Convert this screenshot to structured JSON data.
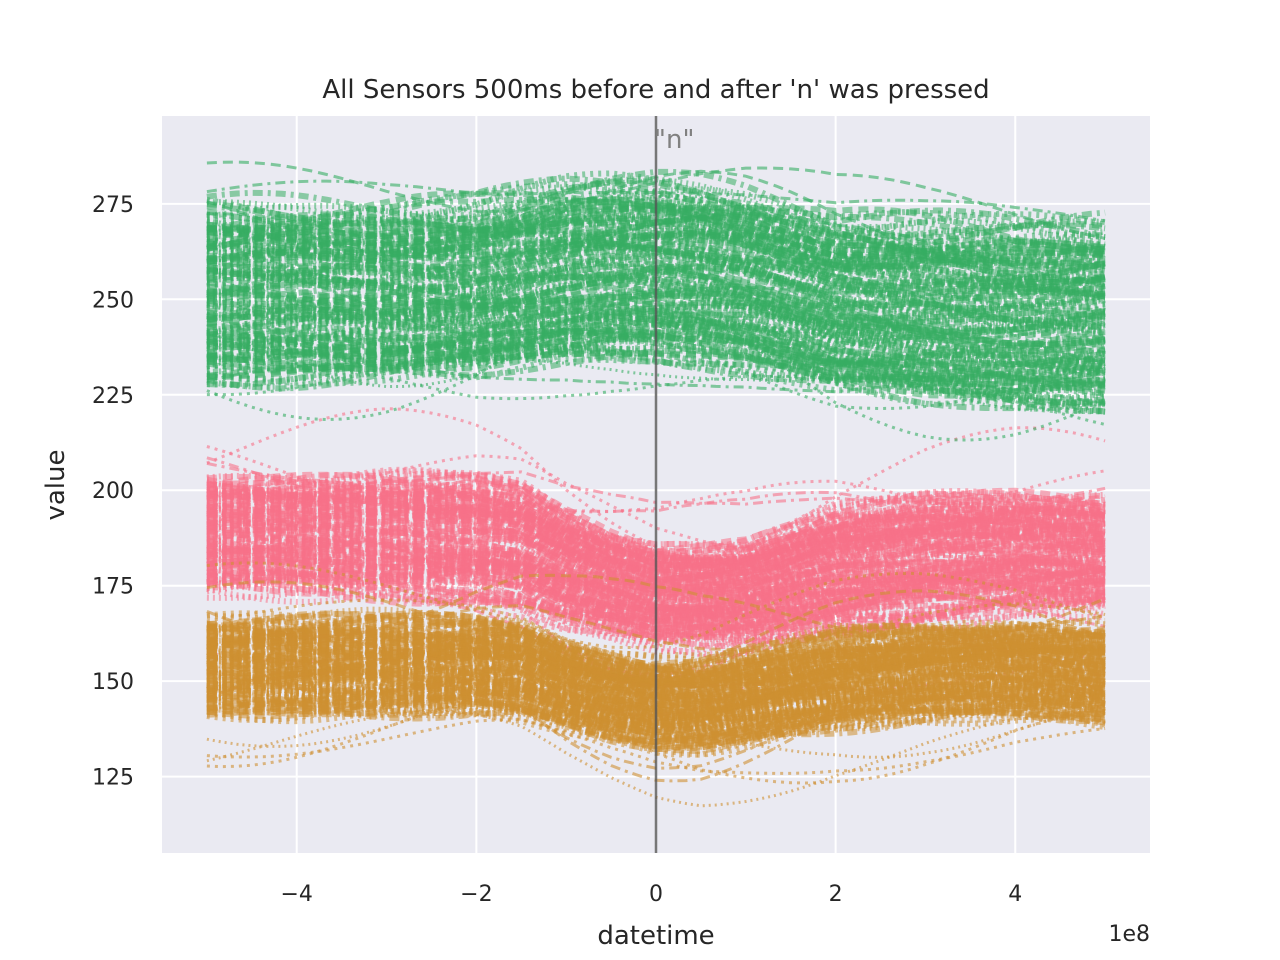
{
  "chart_data": {
    "type": "line",
    "title": "All Sensors 500ms before and after 'n' was pressed",
    "xlabel": "datetime",
    "ylabel": "value",
    "x_offset_text": "1e8",
    "xlim": [
      -5.5,
      5.5
    ],
    "ylim": [
      105,
      298
    ],
    "x_ticks": [
      -4,
      -2,
      0,
      2,
      4
    ],
    "x_tick_labels": [
      "−4",
      "−2",
      "0",
      "2",
      "4"
    ],
    "y_ticks": [
      125,
      150,
      175,
      200,
      225,
      250,
      275
    ],
    "y_tick_labels": [
      "125",
      "150",
      "175",
      "200",
      "225",
      "250",
      "275"
    ],
    "x_range": [
      -5,
      5
    ],
    "grid": true,
    "background": "#eaeaf2",
    "annotations": [
      {
        "x": 0,
        "text": "\"n\"",
        "line_color": "#555555"
      }
    ],
    "series": [
      {
        "color": "#f77189",
        "x": [
          -5,
          -4,
          -3,
          -2,
          -1.5,
          -1,
          -0.5,
          0,
          0.5,
          1,
          1.5,
          2,
          3,
          4,
          5
        ],
        "center": [
          188,
          188,
          188,
          187,
          185,
          179,
          175,
          172,
          172,
          173,
          176,
          179,
          182,
          183,
          183
        ],
        "half_width": [
          14,
          14,
          14,
          14,
          14,
          13,
          12,
          12,
          12,
          12,
          13,
          14,
          14,
          14,
          14
        ],
        "outlier_spread": 28
      },
      {
        "color": "#ce9032",
        "x": [
          -5,
          -4,
          -3,
          -2,
          -1.5,
          -1,
          -0.5,
          0,
          0.5,
          1,
          1.5,
          2,
          3,
          4,
          5
        ],
        "center": [
          154,
          154,
          154,
          154,
          153,
          149,
          146,
          144,
          144,
          146,
          148,
          150,
          152,
          153,
          152
        ],
        "half_width": [
          11,
          11,
          11,
          11,
          11,
          10,
          10,
          10,
          10,
          10,
          10,
          11,
          11,
          11,
          11
        ],
        "outlier_spread": 22
      },
      {
        "color": "#36ad63",
        "x": [
          -5,
          -4,
          -3,
          -2,
          -1.5,
          -1,
          -0.5,
          0,
          0.5,
          1,
          1.5,
          2,
          3,
          4,
          5
        ],
        "center": [
          252,
          252,
          252,
          253,
          255,
          257,
          258,
          258,
          257,
          255,
          252,
          249,
          247,
          246,
          246
        ],
        "half_width": [
          22,
          22,
          22,
          22,
          22,
          22,
          22,
          22,
          22,
          22,
          22,
          22,
          23,
          23,
          23
        ],
        "outlier_spread": 28
      }
    ]
  }
}
